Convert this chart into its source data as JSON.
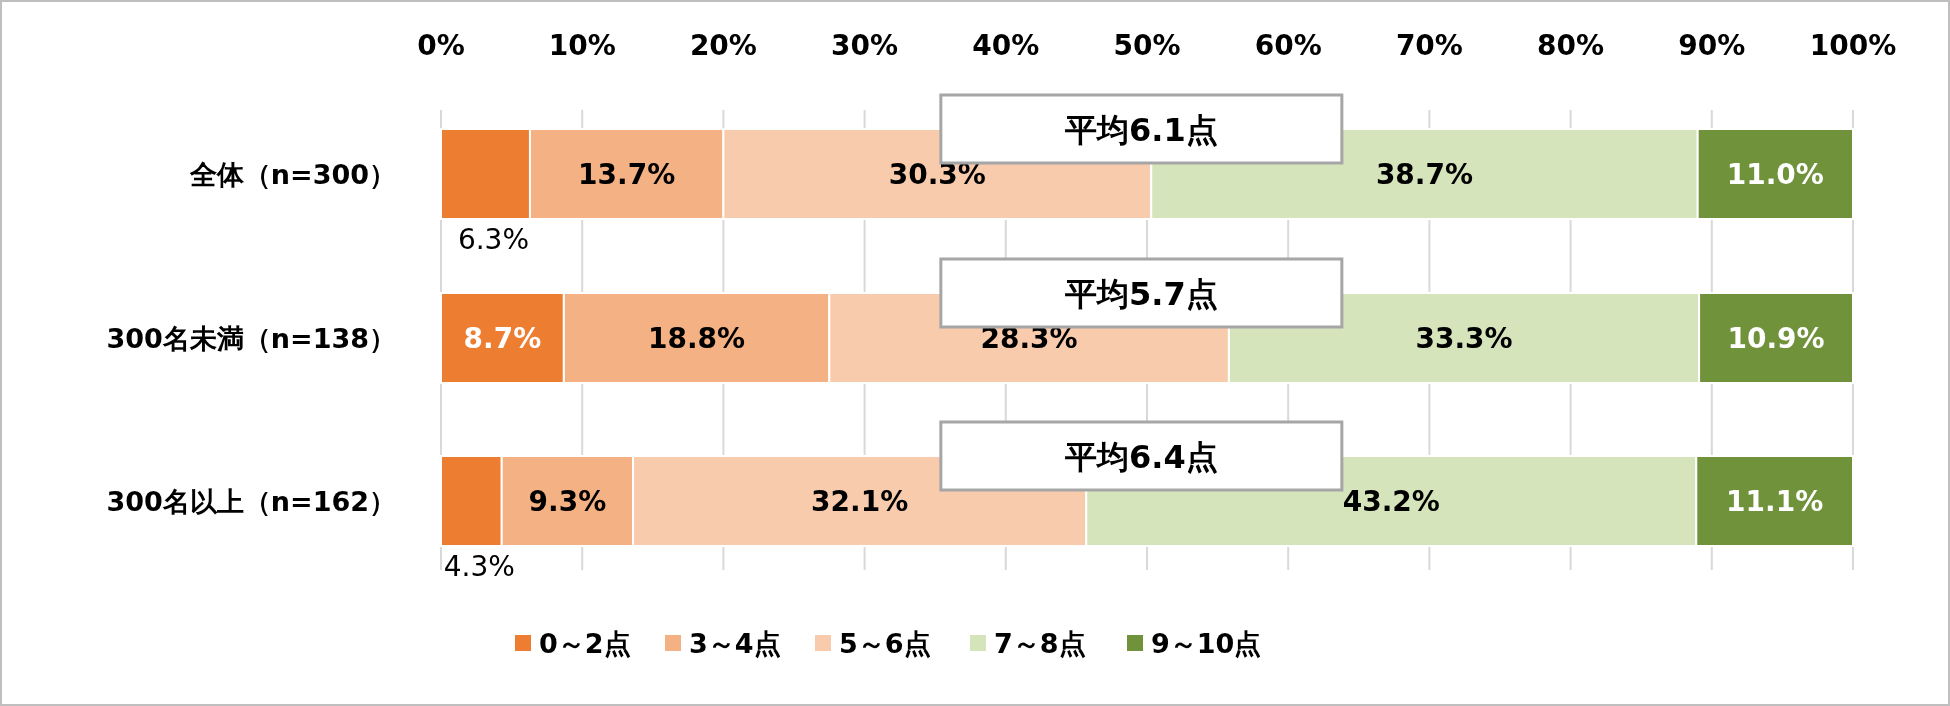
{
  "chart_data": {
    "type": "bar",
    "orientation": "horizontal",
    "stacked": true,
    "categories": [
      "全体（n=300）",
      "300名未満（n=138）",
      "300名以上（n=162）"
    ],
    "series": [
      {
        "name": "0～2点",
        "color": "#ed7d31",
        "values": [
          6.3,
          8.7,
          4.3
        ],
        "value_labels": [
          "6.3%",
          "8.7%",
          "4.3%"
        ]
      },
      {
        "name": "3～4点",
        "color": "#f4b183",
        "values": [
          13.7,
          18.8,
          9.3
        ],
        "value_labels": [
          "13.7%",
          "18.8%",
          "9.3%"
        ]
      },
      {
        "name": "5～6点",
        "color": "#f8cbad",
        "values": [
          30.3,
          28.3,
          32.1
        ],
        "value_labels": [
          "30.3%",
          "28.3%",
          "32.1%"
        ]
      },
      {
        "name": "7～8点",
        "color": "#d6e4bc",
        "values": [
          38.7,
          33.3,
          43.2
        ],
        "value_labels": [
          "38.7%",
          "33.3%",
          "43.2%"
        ]
      },
      {
        "name": "9～10点",
        "color": "#70923a",
        "values": [
          11.0,
          10.9,
          11.1
        ],
        "value_labels": [
          "11.0%",
          "10.9%",
          "11.1%"
        ]
      }
    ],
    "xlim": [
      0,
      100
    ],
    "xticks": [
      {
        "value": 0,
        "label": "0%"
      },
      {
        "value": 10,
        "label": "10%"
      },
      {
        "value": 20,
        "label": "20%"
      },
      {
        "value": 30,
        "label": "30%"
      },
      {
        "value": 40,
        "label": "40%"
      },
      {
        "value": 50,
        "label": "50%"
      },
      {
        "value": 60,
        "label": "60%"
      },
      {
        "value": 70,
        "label": "70%"
      },
      {
        "value": 80,
        "label": "80%"
      },
      {
        "value": 90,
        "label": "90%"
      },
      {
        "value": 100,
        "label": "100%"
      }
    ],
    "grid": "x",
    "legend": "bottom",
    "annotations": [
      "平均6.1点",
      "平均5.7点",
      "平均6.4点"
    ]
  }
}
